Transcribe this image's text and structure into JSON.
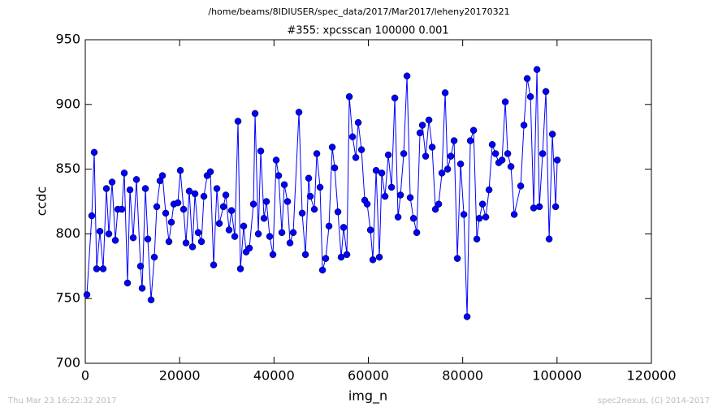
{
  "chart_data": {
    "type": "line",
    "suptitle": "/home/beams/8IDIUSER/spec_data/2017/Mar2017/leheny20170321",
    "title": "#355: xpcsscan 100000 0.001",
    "xlabel": "img_n",
    "ylabel": "ccdc",
    "footer_left": "Thu Mar 23 16:22:32 2017",
    "footer_right": "spec2nexus, (C) 2014-2017",
    "xlim": [
      0,
      120000
    ],
    "xticks": [
      0,
      20000,
      40000,
      60000,
      80000,
      100000,
      120000
    ],
    "ylim": [
      700,
      950
    ],
    "yticks": [
      700,
      750,
      800,
      850,
      900,
      950
    ],
    "grid": false,
    "x": [
      344,
      1377,
      1894,
      2410,
      3099,
      3788,
      4477,
      4994,
      5683,
      6371,
      6888,
      7749,
      8266,
      8954,
      9471,
      10160,
      10849,
      11710,
      12054,
      12743,
      13259,
      13948,
      14637,
      15154,
      15843,
      16359,
      17048,
      17737,
      18253,
      18770,
      19631,
      20148,
      20836,
      21353,
      22042,
      22730,
      23247,
      23936,
      24625,
      25141,
      25830,
      26519,
      27208,
      27896,
      28413,
      29274,
      29791,
      30479,
      30996,
      31685,
      32373,
      32890,
      33579,
      34096,
      34784,
      35645,
      35990,
      36678,
      37195,
      37884,
      38401,
      39089,
      39778,
      40467,
      40983,
      41672,
      42189,
      42878,
      43394,
      44083,
      45289,
      45977,
      46666,
      47355,
      47699,
      48560,
      49077,
      49766,
      50282,
      50971,
      51660,
      52349,
      52865,
      53554,
      54243,
      54760,
      55448,
      55965,
      56654,
      57342,
      57859,
      58548,
      59237,
      59753,
      60442,
      60959,
      61647,
      62336,
      62853,
      63542,
      64230,
      64919,
      65608,
      66297,
      66813,
      67502,
      68191,
      68880,
      69568,
      70257,
      70946,
      71463,
      72151,
      72840,
      73529,
      74218,
      74906,
      75595,
      76284,
      76801,
      77489,
      78178,
      78867,
      79555,
      80244,
      80933,
      81622,
      82310,
      82999,
      83516,
      84205,
      84893,
      85582,
      86271,
      86959,
      87648,
      88337,
      89026,
      89542,
      90231,
      90920,
      92297,
      92986,
      93675,
      94364,
      95052,
      95741,
      96258,
      96947,
      97635,
      98324,
      99013,
      99702,
      100046
    ],
    "series": [
      {
        "name": "ccdc",
        "color": "#0000ff",
        "values": [
          753,
          814,
          863,
          773,
          802,
          773,
          835,
          800,
          840,
          795,
          819,
          819,
          847,
          762,
          834,
          797,
          842,
          775,
          758,
          835,
          796,
          749,
          782,
          821,
          841,
          845,
          816,
          794,
          809,
          823,
          824,
          849,
          819,
          793,
          833,
          790,
          831,
          801,
          794,
          829,
          845,
          848,
          776,
          835,
          808,
          821,
          830,
          803,
          818,
          798,
          887,
          773,
          806,
          786,
          789,
          823,
          893,
          800,
          864,
          812,
          825,
          798,
          784,
          857,
          845,
          801,
          838,
          825,
          793,
          801,
          894,
          816,
          784,
          843,
          829,
          819,
          862,
          836,
          772,
          781,
          806,
          867,
          851,
          817,
          782,
          805,
          784,
          906,
          875,
          859,
          886,
          865,
          826,
          823,
          803,
          780,
          849,
          782,
          847,
          829,
          861,
          836,
          905,
          813,
          830,
          862,
          922,
          828,
          812,
          801,
          878,
          884,
          860,
          888,
          867,
          819,
          823,
          847,
          909,
          850,
          860,
          872,
          781,
          854,
          815,
          736,
          872,
          880,
          796,
          812,
          823,
          813,
          834,
          869,
          862,
          855,
          857,
          902,
          862,
          852,
          815,
          837,
          884,
          920,
          906,
          820,
          927,
          821,
          862,
          910,
          796,
          877,
          821,
          857
        ]
      }
    ]
  }
}
